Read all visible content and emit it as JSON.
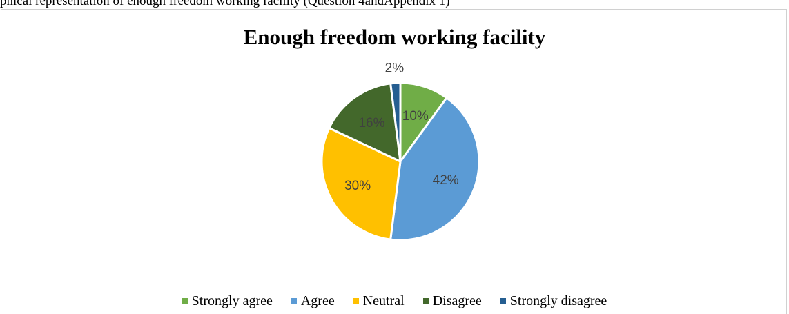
{
  "caption": "phical representation of enough freedom working facility (Question 4andAppendix 1)",
  "chart_data": {
    "type": "pie",
    "title": "Enough freedom working facility",
    "categories": [
      "Strongly agree",
      "Agree",
      "Neutral",
      "Disagree",
      "Strongly disagree"
    ],
    "values": [
      10,
      42,
      30,
      16,
      2
    ],
    "labels": [
      "10%",
      "42%",
      "30%",
      "16%",
      "2%"
    ],
    "colors": [
      "#70ad47",
      "#5b9bd5",
      "#ffc000",
      "#43682b",
      "#255e91"
    ],
    "legend_position": "bottom"
  }
}
